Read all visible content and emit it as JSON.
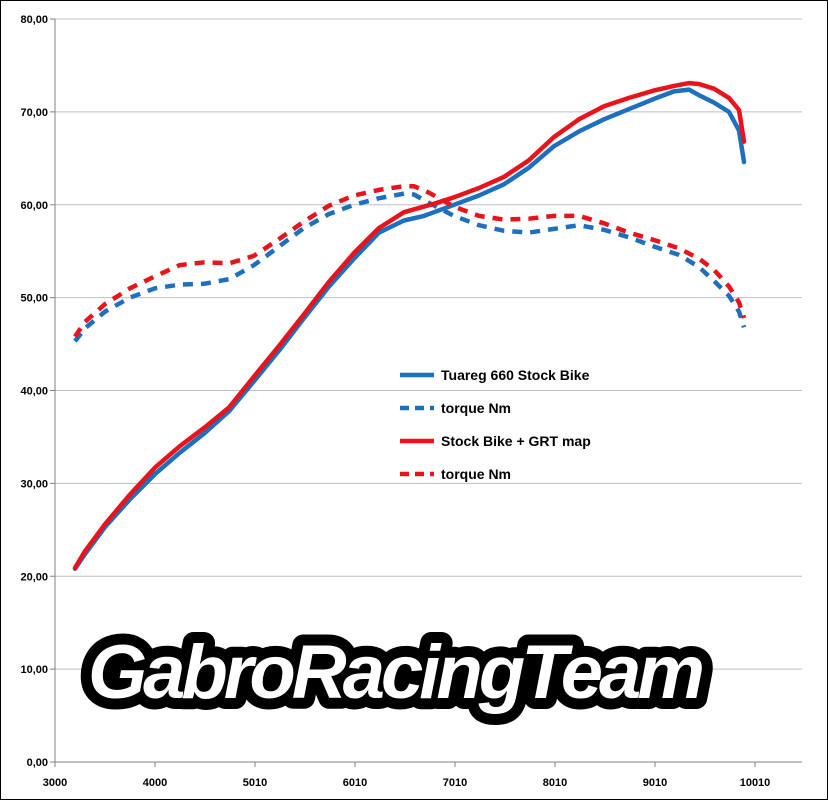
{
  "chart_data": {
    "type": "line",
    "x_ticks": [
      "3000",
      "4000",
      "5010",
      "6010",
      "7010",
      "8010",
      "9010",
      "10010"
    ],
    "y_ticks": [
      "0,00",
      "10,00",
      "20,00",
      "30,00",
      "40,00",
      "50,00",
      "60,00",
      "70,00",
      "80,00"
    ],
    "xlim": [
      3000,
      10500
    ],
    "ylim": [
      0,
      80
    ],
    "grid": "horizontal",
    "legend_position": "center-right",
    "series": [
      {
        "name": "Tuareg 660 Stock Bike",
        "color": "#1f6fbf",
        "dashed": false,
        "x": [
          3200,
          3300,
          3500,
          3750,
          4000,
          4250,
          4500,
          4750,
          5000,
          5250,
          5500,
          5750,
          6000,
          6250,
          6500,
          6700,
          6800,
          7000,
          7250,
          7500,
          7750,
          8000,
          8250,
          8500,
          8750,
          9000,
          9200,
          9350,
          9450,
          9600,
          9750,
          9850,
          9900
        ],
        "y": [
          20.8,
          22.4,
          25.3,
          28.3,
          31.0,
          33.3,
          35.4,
          37.8,
          41.0,
          44.3,
          47.8,
          51.2,
          54.2,
          57.0,
          58.3,
          58.8,
          59.2,
          60.0,
          61.0,
          62.2,
          64.0,
          66.3,
          67.9,
          69.2,
          70.3,
          71.4,
          72.2,
          72.4,
          71.8,
          71.0,
          70.0,
          68.0,
          64.6
        ]
      },
      {
        "name": "torque Nm",
        "color": "#1f6fbf",
        "dashed": true,
        "x": [
          3200,
          3300,
          3500,
          3750,
          4000,
          4250,
          4500,
          4750,
          5000,
          5250,
          5500,
          5750,
          6000,
          6250,
          6500,
          6600,
          6750,
          7000,
          7250,
          7500,
          7750,
          8000,
          8250,
          8500,
          8750,
          9000,
          9250,
          9450,
          9600,
          9750,
          9850,
          9900
        ],
        "y": [
          45.3,
          46.7,
          48.5,
          50.0,
          51.0,
          51.4,
          51.5,
          52.0,
          53.5,
          55.5,
          57.5,
          59.0,
          60.0,
          60.7,
          61.2,
          61.1,
          60.2,
          58.8,
          57.8,
          57.2,
          57.0,
          57.4,
          57.8,
          57.3,
          56.5,
          55.5,
          54.6,
          53.3,
          51.8,
          50.2,
          48.5,
          46.8
        ]
      },
      {
        "name": "Stock Bike + GRT map",
        "color": "#e8141c",
        "dashed": false,
        "x": [
          3200,
          3300,
          3500,
          3750,
          4000,
          4250,
          4500,
          4750,
          5000,
          5250,
          5500,
          5750,
          6000,
          6250,
          6500,
          6700,
          6800,
          7000,
          7250,
          7500,
          7750,
          8000,
          8250,
          8500,
          8750,
          9000,
          9200,
          9350,
          9450,
          9600,
          9750,
          9850,
          9900
        ],
        "y": [
          20.9,
          22.7,
          25.6,
          28.8,
          31.7,
          34.0,
          36.0,
          38.2,
          41.5,
          44.8,
          48.2,
          51.7,
          54.8,
          57.5,
          59.2,
          59.8,
          60.1,
          60.8,
          61.8,
          63.0,
          64.8,
          67.3,
          69.2,
          70.6,
          71.5,
          72.3,
          72.8,
          73.1,
          73.0,
          72.5,
          71.5,
          70.2,
          66.8
        ]
      },
      {
        "name": "torque Nm",
        "color": "#e8141c",
        "dashed": true,
        "x": [
          3200,
          3300,
          3500,
          3750,
          4000,
          4250,
          4500,
          4750,
          5000,
          5250,
          5500,
          5750,
          6000,
          6250,
          6500,
          6600,
          6750,
          7000,
          7250,
          7500,
          7750,
          8000,
          8250,
          8500,
          8750,
          9000,
          9250,
          9450,
          9600,
          9750,
          9850,
          9900
        ],
        "y": [
          45.8,
          47.4,
          49.3,
          51.0,
          52.3,
          53.5,
          53.8,
          53.7,
          54.5,
          56.3,
          58.2,
          59.9,
          61.0,
          61.6,
          62.0,
          62.0,
          61.3,
          59.8,
          58.8,
          58.4,
          58.5,
          58.8,
          58.8,
          58.0,
          57.0,
          56.2,
          55.3,
          54.2,
          53.0,
          51.2,
          49.5,
          47.8
        ]
      }
    ]
  },
  "logo": {
    "text": "GabroRacingTeam",
    "fill": "#ffffff",
    "outline": "#000000"
  }
}
